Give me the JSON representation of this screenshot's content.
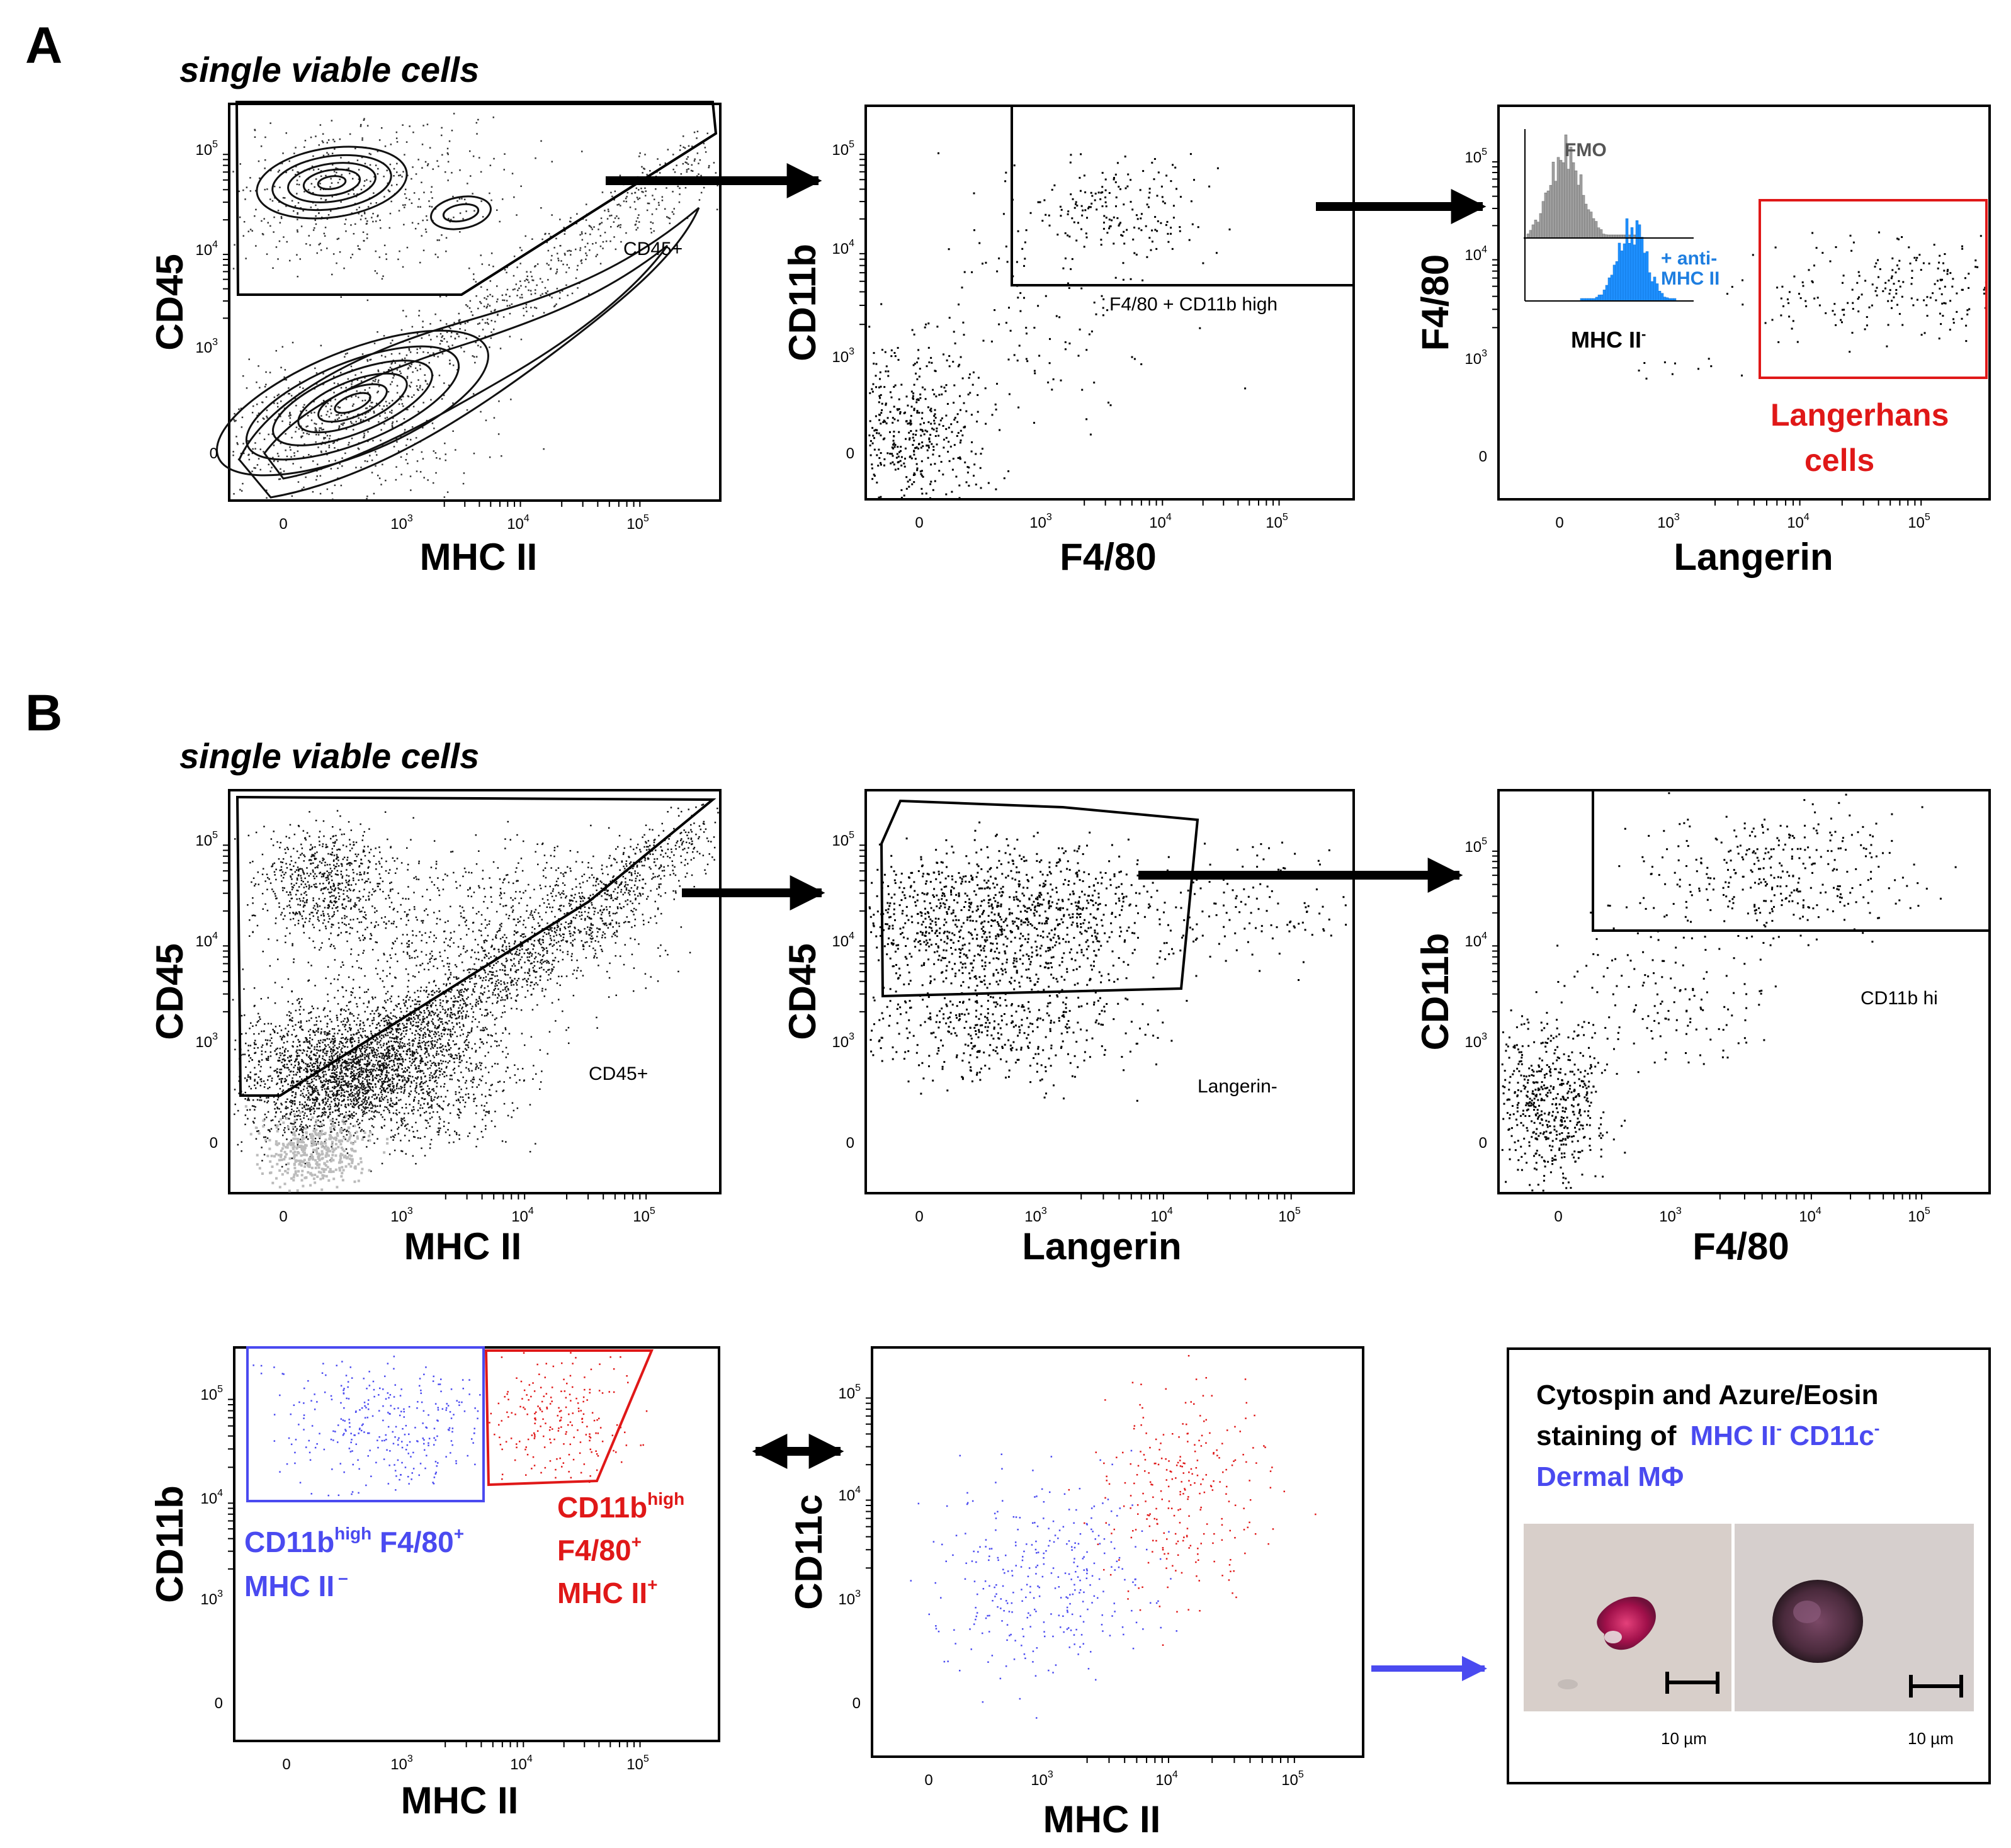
{
  "panels": {
    "a_label": "A",
    "b_label": "B",
    "a_heading": "single viable cells",
    "b_heading": "single viable cells"
  },
  "gates": {
    "cd45_pos": "CD45+",
    "f480_cd11b_high": "F4/80 + CD11b high",
    "langerhans_line1": "Langerhans",
    "langerhans_line2": "cells",
    "cd45_pos_b": "CD45+",
    "langerin_neg": "Langerin-",
    "cd11b_hi": "CD11b hi",
    "blue_pop_line1_a": "CD11b",
    "blue_pop_line1_sup": "high",
    "blue_pop_line1_b": " F4/80",
    "blue_pop_line1_plus": "+",
    "blue_pop_line2": "MHC II",
    "blue_pop_line2_sup": "–",
    "red_pop_line1_a": "CD11b",
    "red_pop_line1_sup": "high",
    "red_pop_line2": "F4/80",
    "red_pop_line2_sup": "+",
    "red_pop_line3": "MHC II",
    "red_pop_line3_sup": "+"
  },
  "inset": {
    "fmo": "FMO",
    "anti_line1": "+ anti-",
    "anti_line2": "MHC II",
    "xlabel": "MHC II",
    "xlabel_sup": "-"
  },
  "cytospin": {
    "line1": "Cytospin and Azure/Eosin",
    "line2_a": "staining of",
    "line2_b": "MHC II",
    "line2_sup1": "-",
    "line2_c": " CD11c",
    "line2_sup2": "-",
    "line3": "Dermal MΦ",
    "scale1": "10 µm",
    "scale2": "10 µm"
  },
  "ticks": {
    "zero": "0",
    "ten": "10",
    "exp3": "3",
    "exp4": "4",
    "exp5": "5"
  },
  "colors": {
    "blue_population": "#4a4af0",
    "red_population": "#e01818",
    "langerhans_gate": "#e01818",
    "anti_mhc_histogram": "#1e90ff",
    "fmo_histogram": "#a0a0a0",
    "arrow_blue": "#4a4af0"
  },
  "chart_data": [
    {
      "id": "A1",
      "type": "scatter",
      "title": "",
      "xlabel": "MHC II",
      "ylabel": "CD45",
      "scale": "biexponential",
      "xlim": [
        -1000,
        250000
      ],
      "ylim": [
        -1000,
        250000
      ],
      "gate": "CD45+",
      "plot_style": "contour with outliers"
    },
    {
      "id": "A2",
      "type": "scatter",
      "title": "",
      "xlabel": "F4/80",
      "ylabel": "CD11b",
      "scale": "biexponential",
      "xlim": [
        -1000,
        250000
      ],
      "ylim": [
        -1000,
        250000
      ],
      "gate": "F4/80 + CD11b high"
    },
    {
      "id": "A3",
      "type": "scatter",
      "title": "",
      "xlabel": "Langerin",
      "ylabel": "F4/80",
      "scale": "biexponential",
      "xlim": [
        -1000,
        250000
      ],
      "ylim": [
        -1000,
        250000
      ],
      "gate": "Langerhans cells",
      "inset": {
        "type": "histogram",
        "xlabel": "MHC II",
        "series": [
          {
            "name": "FMO"
          },
          {
            "name": "+ anti-MHC II"
          }
        ]
      }
    },
    {
      "id": "B1",
      "type": "scatter",
      "title": "",
      "xlabel": "MHC II",
      "ylabel": "CD45",
      "scale": "biexponential",
      "xlim": [
        -1000,
        250000
      ],
      "ylim": [
        -1000,
        250000
      ],
      "gate": "CD45+",
      "plot_style": "density dot plot"
    },
    {
      "id": "B2",
      "type": "scatter",
      "title": "",
      "xlabel": "Langerin",
      "ylabel": "CD45",
      "scale": "biexponential",
      "xlim": [
        -1000,
        250000
      ],
      "ylim": [
        -1000,
        250000
      ],
      "gate": "Langerin-"
    },
    {
      "id": "B3",
      "type": "scatter",
      "title": "",
      "xlabel": "F4/80",
      "ylabel": "CD11b",
      "scale": "biexponential",
      "xlim": [
        -1000,
        250000
      ],
      "ylim": [
        -1000,
        250000
      ],
      "gate": "CD11b hi"
    },
    {
      "id": "B4",
      "type": "scatter",
      "title": "",
      "xlabel": "MHC II",
      "ylabel": "CD11b",
      "scale": "biexponential",
      "xlim": [
        -1000,
        250000
      ],
      "ylim": [
        -1000,
        250000
      ],
      "series": [
        {
          "name": "CD11b high F4/80+ MHC II -",
          "color": "#4a4af0"
        },
        {
          "name": "CD11b high F4/80+ MHC II+",
          "color": "#e01818"
        }
      ]
    },
    {
      "id": "B5",
      "type": "scatter",
      "title": "",
      "xlabel": "MHC II",
      "ylabel": "CD11c",
      "scale": "biexponential",
      "xlim": [
        -1000,
        250000
      ],
      "ylim": [
        -1000,
        250000
      ],
      "series": [
        {
          "name": "CD11b high F4/80+ MHC II -",
          "color": "#4a4af0"
        },
        {
          "name": "CD11b high F4/80+ MHC II+",
          "color": "#e01818"
        }
      ]
    }
  ]
}
